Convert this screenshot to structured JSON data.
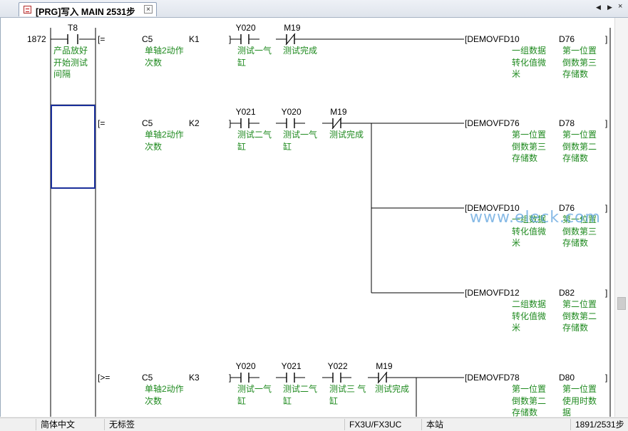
{
  "tab": {
    "title": "[PRG]写入 MAIN 2531步",
    "close": "×"
  },
  "nav": {
    "prev": "◀",
    "next": "▶"
  },
  "rung": {
    "step": "1872",
    "t8": {
      "device": "T8",
      "comment": "产品放好\n开始测试\n间隔"
    },
    "lines": [
      {
        "compare": {
          "op": "[=",
          "s1": "C5",
          "s2": "K1",
          "s1_comment": "单轴2动作\n次数"
        },
        "contacts": [
          {
            "device": "Y020",
            "comment": "测试一气\n缸",
            "type": "NO"
          },
          {
            "device": "M19",
            "comment": "测试完成",
            "type": "NC"
          }
        ],
        "outputs": [
          {
            "instr": "[DEMOVFD10",
            "dst": "D76",
            "c1": "一组数据\n转化值微\n米",
            "c2": "第一位置\n倒数第三\n存储数"
          }
        ]
      },
      {
        "compare": {
          "op": "[=",
          "s1": "C5",
          "s2": "K2",
          "s1_comment": "单轴2动作\n次数"
        },
        "contacts": [
          {
            "device": "Y021",
            "comment": "测试二气\n缸",
            "type": "NO"
          },
          {
            "device": "Y020",
            "comment": "测试一气\n缸",
            "type": "NO"
          },
          {
            "device": "M19",
            "comment": "测试完成",
            "type": "NC"
          }
        ],
        "outputs": [
          {
            "instr": "[DEMOVFD76",
            "dst": "D78",
            "c1": "第一位置\n倒数第三\n存储数",
            "c2": "第一位置\n倒数第二\n存储数"
          },
          {
            "instr": "[DEMOVFD10",
            "dst": "D76",
            "c1": "一组数据\n转化值微\n米",
            "c2": "第一位置\n倒数第三\n存储数"
          },
          {
            "instr": "[DEMOVFD12",
            "dst": "D82",
            "c1": "二组数据\n转化值微\n米",
            "c2": "第二位置\n倒数第二\n存储数"
          }
        ]
      },
      {
        "compare": {
          "op": "[>=",
          "s1": "C5",
          "s2": "K3",
          "s1_comment": "单轴2动作\n次数"
        },
        "contacts": [
          {
            "device": "Y020",
            "comment": "测试一气\n缸",
            "type": "NO"
          },
          {
            "device": "Y021",
            "comment": "测试二气\n缸",
            "type": "NO"
          },
          {
            "device": "Y022",
            "comment": "测试三 气\n缸",
            "type": "NO"
          },
          {
            "device": "M19",
            "comment": "测试完成",
            "type": "NC"
          }
        ],
        "outputs": [
          {
            "instr": "[DEMOVFD78",
            "dst": "D80",
            "c1": "第一位置\n倒数第二\n存储数",
            "c2": "第一位置\n使用时数\n据"
          }
        ]
      }
    ]
  },
  "watermark": "www.eleck.com",
  "status": {
    "language": "简体中文",
    "label": "无标签",
    "plc": "FX3U/FX3UC",
    "station": "本站",
    "steps": "1891/2531步"
  },
  "colors": {
    "comment": "#1f8a1f",
    "cursor": "#1a2f9a",
    "tab_close_border": "#8a8a8a"
  }
}
